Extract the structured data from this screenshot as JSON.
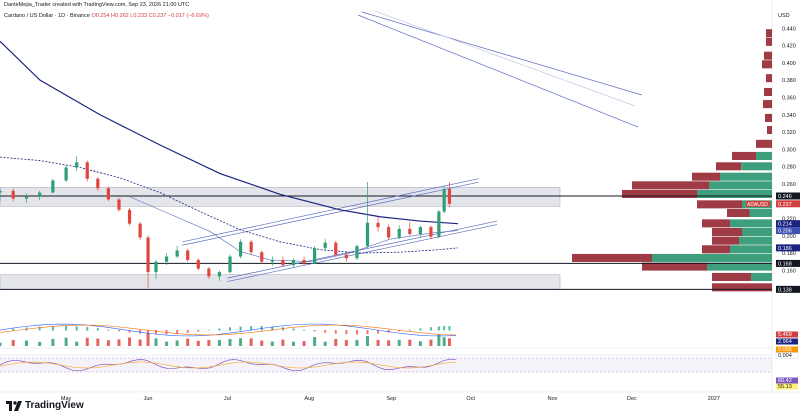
{
  "header": {
    "credit": "DanteMejia_Trader created with TradingView.com, Sep 23, 2026 21:00 UTC",
    "symbol": "Cardano / US Dollar · 1D · Binance",
    "ohlc": "O0.254  H0.262  L0.233  C0.237  −0.017 (−6.69%)",
    "currency": "USD"
  },
  "branding": {
    "logo_text": "TradingView"
  },
  "chart_data": {
    "type": "candlestick",
    "price_axis": {
      "range": [
        0.128,
        0.445
      ],
      "ticks": [
        0.44,
        0.42,
        0.4,
        0.38,
        0.36,
        0.34,
        0.32,
        0.3,
        0.28,
        0.26,
        0.22,
        0.2,
        0.18,
        0.16
      ]
    },
    "time_axis": {
      "labels": [
        {
          "label": "May",
          "date": "2026-05-01"
        },
        {
          "label": "Jun",
          "date": "2026-06-01"
        },
        {
          "label": "Jul",
          "date": "2026-07-01"
        },
        {
          "label": "Aug",
          "date": "2026-08-01"
        },
        {
          "label": "Sep",
          "date": "2026-09-01"
        },
        {
          "label": "Oct",
          "date": "2026-10-01"
        },
        {
          "label": "Nov",
          "date": "2026-11-01"
        },
        {
          "label": "Dec",
          "date": "2026-12-01"
        },
        {
          "label": "2027",
          "date": "2027-01-01"
        }
      ]
    },
    "price_labels": [
      {
        "text": "0.246",
        "value": 0.246,
        "bg": "#131722",
        "fg": "#ffffff"
      },
      {
        "text": "ADAUSD",
        "value": 0.237,
        "bg": "#d23f3f",
        "fg": "#ffffff"
      },
      {
        "text": "0.237",
        "value": 0.237,
        "bg": "#d23f3f",
        "fg": "#ffffff"
      },
      {
        "text": "0.214",
        "value": 0.214,
        "bg": "#1a237e",
        "fg": "#ffffff"
      },
      {
        "text": "0.206",
        "value": 0.206,
        "bg": "#3f51b5",
        "fg": "#ffffff"
      },
      {
        "text": "0.186",
        "value": 0.186,
        "bg": "#1a237e",
        "fg": "#ffffff"
      },
      {
        "text": "0.168",
        "value": 0.168,
        "bg": "#131722",
        "fg": "#ffffff"
      },
      {
        "text": "0.138",
        "value": 0.138,
        "bg": "#131722",
        "fg": "#ffffff"
      }
    ],
    "horizontal_lines": [
      0.246,
      0.168,
      0.138
    ],
    "zones": [
      {
        "from": 0.234,
        "to": 0.256
      },
      {
        "from": 0.138,
        "to": 0.155
      }
    ],
    "close_series": [
      {
        "date": "2026-04-06",
        "open": 0.25,
        "high": 0.256,
        "low": 0.24,
        "close": 0.252
      },
      {
        "date": "2026-04-11",
        "open": 0.252,
        "high": 0.255,
        "low": 0.24,
        "close": 0.243
      },
      {
        "date": "2026-04-16",
        "open": 0.243,
        "high": 0.249,
        "low": 0.238,
        "close": 0.245
      },
      {
        "date": "2026-04-21",
        "open": 0.245,
        "high": 0.252,
        "low": 0.241,
        "close": 0.25
      },
      {
        "date": "2026-04-26",
        "open": 0.25,
        "high": 0.266,
        "low": 0.249,
        "close": 0.264
      },
      {
        "date": "2026-05-01",
        "open": 0.264,
        "high": 0.282,
        "low": 0.262,
        "close": 0.279
      },
      {
        "date": "2026-05-05",
        "open": 0.279,
        "high": 0.292,
        "low": 0.275,
        "close": 0.285
      },
      {
        "date": "2026-05-09",
        "open": 0.285,
        "high": 0.287,
        "low": 0.263,
        "close": 0.266
      },
      {
        "date": "2026-05-13",
        "open": 0.266,
        "high": 0.268,
        "low": 0.252,
        "close": 0.255
      },
      {
        "date": "2026-05-17",
        "open": 0.255,
        "high": 0.257,
        "low": 0.24,
        "close": 0.242
      },
      {
        "date": "2026-05-21",
        "open": 0.242,
        "high": 0.244,
        "low": 0.228,
        "close": 0.23
      },
      {
        "date": "2026-05-25",
        "open": 0.23,
        "high": 0.232,
        "low": 0.212,
        "close": 0.214
      },
      {
        "date": "2026-05-29",
        "open": 0.214,
        "high": 0.216,
        "low": 0.195,
        "close": 0.198
      },
      {
        "date": "2026-06-01",
        "open": 0.198,
        "high": 0.2,
        "low": 0.14,
        "close": 0.158
      },
      {
        "date": "2026-06-04",
        "open": 0.158,
        "high": 0.172,
        "low": 0.15,
        "close": 0.17
      },
      {
        "date": "2026-06-08",
        "open": 0.17,
        "high": 0.18,
        "low": 0.166,
        "close": 0.176
      },
      {
        "date": "2026-06-12",
        "open": 0.176,
        "high": 0.188,
        "low": 0.174,
        "close": 0.183
      },
      {
        "date": "2026-06-16",
        "open": 0.183,
        "high": 0.185,
        "low": 0.17,
        "close": 0.172
      },
      {
        "date": "2026-06-20",
        "open": 0.172,
        "high": 0.174,
        "low": 0.16,
        "close": 0.162
      },
      {
        "date": "2026-06-24",
        "open": 0.162,
        "high": 0.164,
        "low": 0.15,
        "close": 0.153
      },
      {
        "date": "2026-06-28",
        "open": 0.153,
        "high": 0.16,
        "low": 0.148,
        "close": 0.158
      },
      {
        "date": "2026-07-02",
        "open": 0.158,
        "high": 0.178,
        "low": 0.156,
        "close": 0.176
      },
      {
        "date": "2026-07-06",
        "open": 0.176,
        "high": 0.196,
        "low": 0.174,
        "close": 0.193
      },
      {
        "date": "2026-07-10",
        "open": 0.193,
        "high": 0.195,
        "low": 0.178,
        "close": 0.181
      },
      {
        "date": "2026-07-14",
        "open": 0.181,
        "high": 0.183,
        "low": 0.168,
        "close": 0.17
      },
      {
        "date": "2026-07-18",
        "open": 0.17,
        "high": 0.176,
        "low": 0.165,
        "close": 0.172
      },
      {
        "date": "2026-07-22",
        "open": 0.172,
        "high": 0.176,
        "low": 0.164,
        "close": 0.166
      },
      {
        "date": "2026-07-26",
        "open": 0.166,
        "high": 0.174,
        "low": 0.163,
        "close": 0.172
      },
      {
        "date": "2026-07-30",
        "open": 0.172,
        "high": 0.176,
        "low": 0.166,
        "close": 0.168
      },
      {
        "date": "2026-08-03",
        "open": 0.168,
        "high": 0.188,
        "low": 0.167,
        "close": 0.186
      },
      {
        "date": "2026-08-07",
        "open": 0.186,
        "high": 0.196,
        "low": 0.182,
        "close": 0.192
      },
      {
        "date": "2026-08-11",
        "open": 0.192,
        "high": 0.194,
        "low": 0.176,
        "close": 0.178
      },
      {
        "date": "2026-08-15",
        "open": 0.178,
        "high": 0.18,
        "low": 0.17,
        "close": 0.174
      },
      {
        "date": "2026-08-19",
        "open": 0.174,
        "high": 0.19,
        "low": 0.172,
        "close": 0.188
      },
      {
        "date": "2026-08-23",
        "open": 0.188,
        "high": 0.262,
        "low": 0.186,
        "close": 0.215
      },
      {
        "date": "2026-08-27",
        "open": 0.215,
        "high": 0.222,
        "low": 0.205,
        "close": 0.21
      },
      {
        "date": "2026-08-31",
        "open": 0.21,
        "high": 0.213,
        "low": 0.196,
        "close": 0.198
      },
      {
        "date": "2026-09-04",
        "open": 0.198,
        "high": 0.212,
        "low": 0.196,
        "close": 0.208
      },
      {
        "date": "2026-09-08",
        "open": 0.208,
        "high": 0.216,
        "low": 0.2,
        "close": 0.202
      },
      {
        "date": "2026-09-12",
        "open": 0.202,
        "high": 0.212,
        "low": 0.198,
        "close": 0.21
      },
      {
        "date": "2026-09-16",
        "open": 0.21,
        "high": 0.212,
        "low": 0.196,
        "close": 0.199
      },
      {
        "date": "2026-09-19",
        "open": 0.199,
        "high": 0.23,
        "low": 0.197,
        "close": 0.228
      },
      {
        "date": "2026-09-21",
        "open": 0.228,
        "high": 0.258,
        "low": 0.226,
        "close": 0.254
      },
      {
        "date": "2026-09-23",
        "open": 0.254,
        "high": 0.262,
        "low": 0.233,
        "close": 0.237
      }
    ],
    "indicators": {
      "volume": {
        "labels": [
          {
            "text": "5.469",
            "bg": "#d23f3f"
          },
          {
            "text": "2.964",
            "bg": "#1a237e"
          }
        ]
      },
      "macd": {
        "labels": [
          {
            "text": "0.005",
            "bg": "#ff9800"
          },
          {
            "text": "0.004",
            "bg": "#ffffff"
          }
        ]
      },
      "macd_extra_tick": "-0.020",
      "rsi": {
        "labels": [
          {
            "text": "60.42",
            "bg": "#7e57c2"
          },
          {
            "text": "55.13",
            "bg": "#fff176"
          }
        ]
      }
    },
    "colors": {
      "up": "#2e9e74",
      "down": "#e0463f",
      "profile_down": "#9e3b45",
      "profile_up": "#3f9e7c",
      "ma_dark": "#1a237e",
      "ma_light": "#5c6bc0"
    }
  }
}
